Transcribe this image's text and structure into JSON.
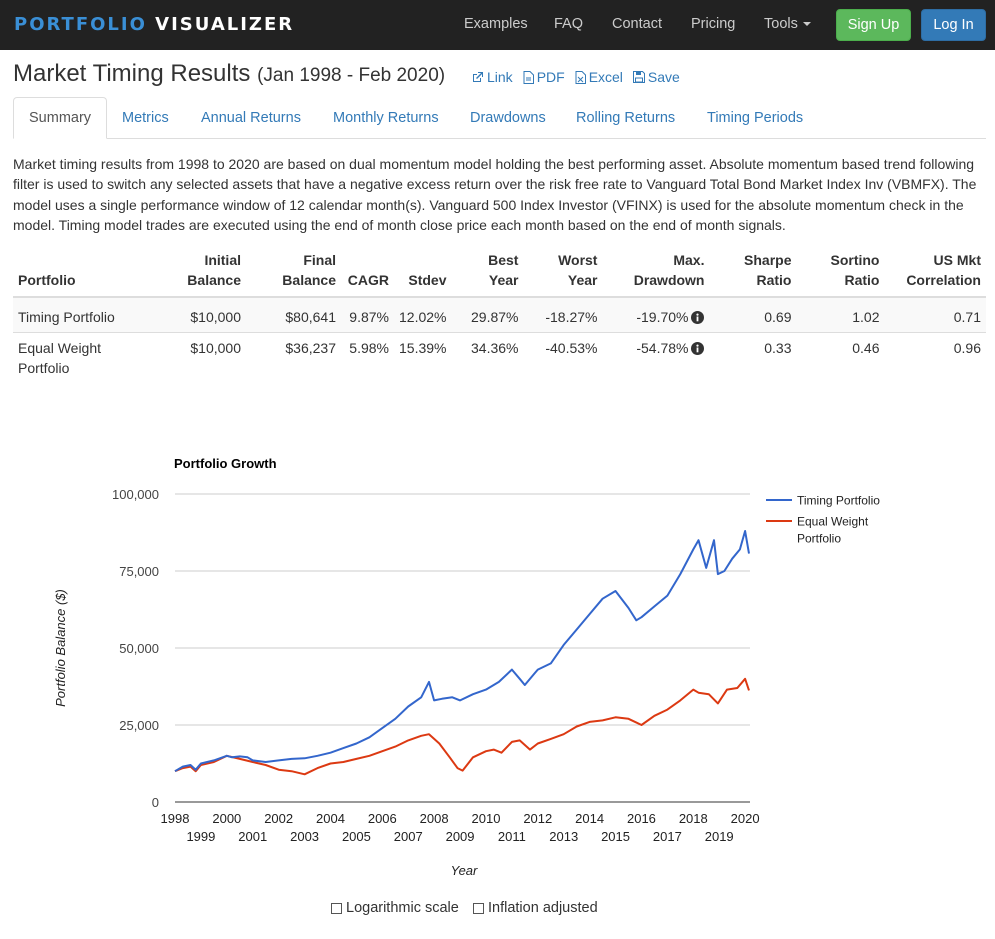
{
  "navbar": {
    "brand_part1": "PORTFOLIO",
    "brand_part2": "VISUALIZER",
    "links": [
      "Examples",
      "FAQ",
      "Contact",
      "Pricing"
    ],
    "tools_label": "Tools",
    "signup_label": "Sign Up",
    "login_label": "Log In"
  },
  "header": {
    "title": "Market Timing Results",
    "subtitle": "(Jan 1998 - Feb 2020)",
    "actions": {
      "link": "Link",
      "pdf": "PDF",
      "excel": "Excel",
      "save": "Save"
    }
  },
  "tabs": [
    "Summary",
    "Metrics",
    "Annual Returns",
    "Monthly Returns",
    "Drawdowns",
    "Rolling Returns",
    "Timing Periods"
  ],
  "description": "Market timing results from 1998 to 2020 are based on dual momentum model holding the best performing asset. Absolute momentum based trend following filter is used to switch any selected assets that have a negative excess return over the risk free rate to Vanguard Total Bond Market Index Inv (VBMFX). The model uses a single performance window of 12 calendar month(s). Vanguard 500 Index Investor (VFINX) is used for the absolute momentum check in the model. Timing model trades are executed using the end of month close price each month based on the end of month signals.",
  "table": {
    "headers": {
      "portfolio": "Portfolio",
      "initial_1": "Initial",
      "initial_2": "Balance",
      "final_1": "Final",
      "final_2": "Balance",
      "cagr": "CAGR",
      "stdev": "Stdev",
      "best_1": "Best",
      "best_2": "Year",
      "worst_1": "Worst",
      "worst_2": "Year",
      "maxdd_1": "Max.",
      "maxdd_2": "Drawdown",
      "sharpe_1": "Sharpe",
      "sharpe_2": "Ratio",
      "sortino_1": "Sortino",
      "sortino_2": "Ratio",
      "usmkt_1": "US Mkt",
      "usmkt_2": "Correlation"
    },
    "rows": [
      {
        "name": "Timing Portfolio",
        "initial": "$10,000",
        "final": "$80,641",
        "cagr": "9.87%",
        "stdev": "12.02%",
        "best": "29.87%",
        "worst": "-18.27%",
        "maxdd": "-19.70%",
        "sharpe": "0.69",
        "sortino": "1.02",
        "usmkt": "0.71"
      },
      {
        "name": "Equal Weight Portfolio",
        "initial": "$10,000",
        "final": "$36,237",
        "cagr": "5.98%",
        "stdev": "15.39%",
        "best": "34.36%",
        "worst": "-40.53%",
        "maxdd": "-54.78%",
        "sharpe": "0.33",
        "sortino": "0.46",
        "usmkt": "0.96"
      }
    ]
  },
  "options": {
    "log_label": "Logarithmic scale",
    "inflation_label": "Inflation adjusted",
    "log_checked": false,
    "inflation_checked": false
  },
  "chart_data": {
    "type": "line",
    "title": "Portfolio Growth",
    "xlabel": "Year",
    "ylabel": "Portfolio Balance ($)",
    "xlim": [
      1998,
      2020.15
    ],
    "ylim": [
      0,
      100000
    ],
    "yticks": [
      0,
      25000,
      50000,
      75000,
      100000
    ],
    "ytick_labels": [
      "0",
      "25,000",
      "50,000",
      "75,000",
      "100,000"
    ],
    "xticks": [
      1998,
      1999,
      2000,
      2001,
      2002,
      2003,
      2004,
      2005,
      2006,
      2007,
      2008,
      2009,
      2010,
      2011,
      2012,
      2013,
      2014,
      2015,
      2016,
      2017,
      2018,
      2019,
      2020
    ],
    "grid": true,
    "legend": "right",
    "series": [
      {
        "name": "Timing Portfolio",
        "color": "#3366cc",
        "x": [
          1998,
          1998.3,
          1998.6,
          1998.8,
          1999,
          1999.5,
          2000,
          2000.2,
          2000.5,
          2000.8,
          2001,
          2001.5,
          2002,
          2002.5,
          2003,
          2003.5,
          2004,
          2004.5,
          2005,
          2005.5,
          2006,
          2006.5,
          2007,
          2007.5,
          2007.8,
          2008.0,
          2008.3,
          2008.7,
          2009,
          2009.5,
          2010,
          2010.5,
          2011,
          2011.3,
          2011.5,
          2011.9,
          2012,
          2012.5,
          2013,
          2013.5,
          2014,
          2014.5,
          2015,
          2015.5,
          2015.8,
          2016,
          2016.5,
          2017,
          2017.5,
          2018,
          2018.2,
          2018.5,
          2018.8,
          2018.95,
          2019.2,
          2019.5,
          2019.8,
          2020,
          2020.15
        ],
        "y": [
          10000,
          11500,
          12000,
          10500,
          12500,
          13500,
          15000,
          14500,
          14800,
          14500,
          13500,
          13000,
          13500,
          14000,
          14200,
          15000,
          16000,
          17500,
          19000,
          21000,
          24000,
          27000,
          31000,
          34000,
          39000,
          33000,
          33500,
          34000,
          33000,
          35000,
          36500,
          39000,
          43000,
          40000,
          38000,
          42000,
          43000,
          45000,
          51000,
          56000,
          61000,
          66000,
          68500,
          63000,
          59000,
          60000,
          63500,
          67000,
          74000,
          82000,
          85000,
          76000,
          85000,
          74000,
          75000,
          79000,
          82000,
          88000,
          80641
        ]
      },
      {
        "name": "Equal Weight Portfolio",
        "color": "#dc3912",
        "x": [
          1998,
          1998.3,
          1998.6,
          1998.8,
          1999,
          1999.5,
          2000,
          2000.5,
          2001,
          2001.5,
          2002,
          2002.5,
          2003,
          2003.5,
          2004,
          2004.5,
          2005,
          2005.5,
          2006,
          2006.5,
          2007,
          2007.5,
          2007.8,
          2008.2,
          2008.6,
          2008.9,
          2009.1,
          2009.5,
          2010,
          2010.3,
          2010.6,
          2011,
          2011.3,
          2011.7,
          2012,
          2012.5,
          2013,
          2013.5,
          2014,
          2014.5,
          2015,
          2015.5,
          2016,
          2016.5,
          2017,
          2017.5,
          2018,
          2018.2,
          2018.6,
          2018.95,
          2019.3,
          2019.7,
          2020,
          2020.15
        ],
        "y": [
          10000,
          11000,
          11500,
          10000,
          12000,
          13000,
          15000,
          14000,
          13000,
          12000,
          10500,
          10000,
          9000,
          11000,
          12500,
          13000,
          14000,
          15000,
          16500,
          18000,
          20000,
          21500,
          22000,
          19000,
          14500,
          11000,
          10200,
          14500,
          16500,
          17000,
          16000,
          19500,
          20000,
          17000,
          19000,
          20500,
          22000,
          24500,
          26000,
          26500,
          27500,
          27000,
          25000,
          28000,
          30000,
          33000,
          36500,
          35500,
          35000,
          32000,
          36500,
          37000,
          40000,
          36237
        ]
      }
    ]
  }
}
